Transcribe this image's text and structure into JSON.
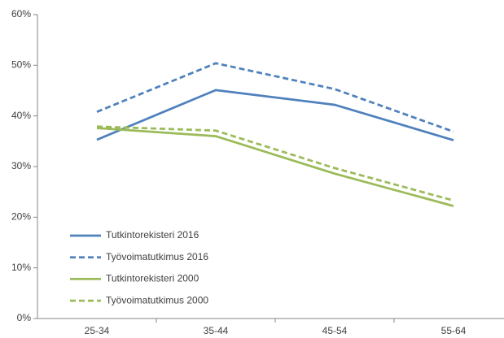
{
  "chart_data": {
    "type": "line",
    "categories": [
      "25-34",
      "35-44",
      "45-54",
      "55-64"
    ],
    "series": [
      {
        "name": "Tutkintorekisteri 2016",
        "color": "#4f81bd",
        "dashed": false,
        "values": [
          35.3,
          45.1,
          42.2,
          35.2
        ]
      },
      {
        "name": "Työvoimatutkimus 2016",
        "color": "#4f81bd",
        "dashed": true,
        "values": [
          40.8,
          50.4,
          45.3,
          36.9
        ]
      },
      {
        "name": "Tutkintorekisteri 2000",
        "color": "#9bbb59",
        "dashed": false,
        "values": [
          37.6,
          36.0,
          28.6,
          22.2
        ]
      },
      {
        "name": "Työvoimatutkimus 2000",
        "color": "#9bbb59",
        "dashed": true,
        "values": [
          37.9,
          37.1,
          29.7,
          23.3
        ]
      }
    ],
    "ylim": [
      0,
      60
    ],
    "yticks": [
      {
        "value": 0,
        "label": "0%"
      },
      {
        "value": 10,
        "label": "10%"
      },
      {
        "value": 20,
        "label": "20%"
      },
      {
        "value": 30,
        "label": "30%"
      },
      {
        "value": 40,
        "label": "40%"
      },
      {
        "value": 50,
        "label": "50%"
      },
      {
        "value": 60,
        "label": "60%"
      }
    ],
    "grid": false,
    "legend": "lower left"
  }
}
